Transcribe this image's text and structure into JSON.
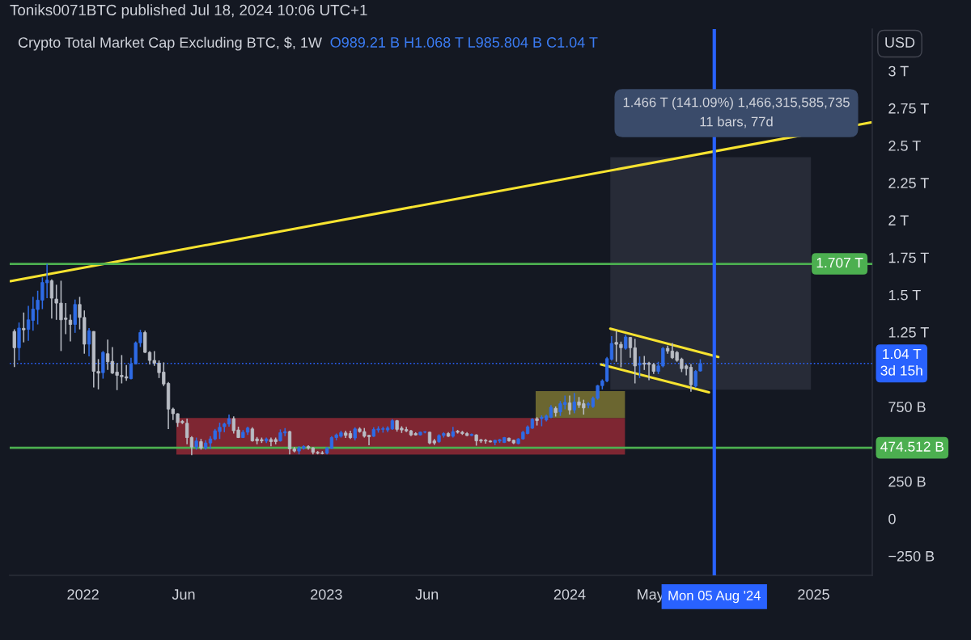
{
  "chart_data": {
    "type": "candlestick",
    "title": "Crypto Total Market Cap Excluding BTC, $, 1W",
    "subtitle": "O989.21 B H1.068 T L985.804 B C1.04 T",
    "annotations": [
      "Toniks0071BTC published Jul 18, 2024 10:06 UTC+1",
      "USD",
      "1.466 T (141.09%) 1,466,315,585,735\n11 bars, 77d"
    ],
    "xlim": [
      "2021-09-13",
      "2025-03-30"
    ],
    "xticks": [
      {
        "value": "2022-01-01",
        "label": "2022"
      },
      {
        "value": "2022-06-01",
        "label": "Jun"
      },
      {
        "value": "2023-01-01",
        "label": "2023"
      },
      {
        "value": "2023-06-01",
        "label": "Jun"
      },
      {
        "value": "2024-01-01",
        "label": "2024"
      },
      {
        "value": "2024-05-01",
        "label": "May"
      },
      {
        "value": "2025-01-01",
        "label": "2025"
      }
    ],
    "ylim": [
      -380000000000.0,
      3280000000000.0
    ],
    "yticks": [
      {
        "value": -250000000000.0,
        "label": "−250 B"
      },
      0,
      {
        "value": 250000000000.0,
        "label": "250 B"
      },
      {
        "value": 750000000000.0,
        "label": "750 B"
      },
      {
        "value": 1250000000000.0,
        "label": "1.25 T"
      },
      {
        "value": 1500000000000.0,
        "label": "1.5 T"
      },
      {
        "value": 1750000000000.0,
        "label": "1.75 T"
      },
      {
        "value": 2000000000000.0,
        "label": "2 T"
      },
      {
        "value": 2250000000000.0,
        "label": "2.25 T"
      },
      {
        "value": 2500000000000.0,
        "label": "2.5 T"
      },
      {
        "value": 2750000000000.0,
        "label": "2.75 T"
      },
      {
        "value": 3000000000000.0,
        "label": "3 T"
      }
    ],
    "ref_lines": [
      {
        "axis": "y",
        "value": 1707000000000.0,
        "label": "1.707 T",
        "color": "#4caf50"
      },
      {
        "axis": "y",
        "value": 474512000000.0,
        "label": "474.512 B",
        "color": "#4caf50"
      },
      {
        "axis": "y",
        "value": 1040000000000.0,
        "label": "1.04 T\n3d 15h",
        "color": "#2962ff",
        "line_style": "dotted"
      },
      {
        "axis": "x",
        "value": "2024-08-05",
        "label": "Mon 05 Aug '24",
        "color": "#2962ff"
      }
    ],
    "x": [
      "2021-09-20",
      "2021-09-27",
      "2021-10-04",
      "2021-10-11",
      "2021-10-18",
      "2021-10-25",
      "2021-11-01",
      "2021-11-08",
      "2021-11-15",
      "2021-11-22",
      "2021-11-29",
      "2021-12-06",
      "2021-12-13",
      "2021-12-20",
      "2021-12-27",
      "2022-01-03",
      "2022-01-10",
      "2022-01-17",
      "2022-01-24",
      "2022-01-31",
      "2022-02-07",
      "2022-02-14",
      "2022-02-21",
      "2022-02-28",
      "2022-03-07",
      "2022-03-14",
      "2022-03-21",
      "2022-03-28",
      "2022-04-04",
      "2022-04-11",
      "2022-04-18",
      "2022-04-25",
      "2022-05-02",
      "2022-05-09",
      "2022-05-16",
      "2022-05-23",
      "2022-05-30",
      "2022-06-06",
      "2022-06-13",
      "2022-06-20",
      "2022-06-27",
      "2022-07-04",
      "2022-07-11",
      "2022-07-18",
      "2022-07-25",
      "2022-08-01",
      "2022-08-08",
      "2022-08-15",
      "2022-08-22",
      "2022-08-29",
      "2022-09-05",
      "2022-09-12",
      "2022-09-19",
      "2022-09-26",
      "2022-10-03",
      "2022-10-10",
      "2022-10-17",
      "2022-10-24",
      "2022-10-31",
      "2022-11-07",
      "2022-11-14",
      "2022-11-21",
      "2022-11-28",
      "2022-12-05",
      "2022-12-12",
      "2022-12-19",
      "2022-12-26",
      "2023-01-02",
      "2023-01-09",
      "2023-01-16",
      "2023-01-23",
      "2023-01-30",
      "2023-02-06",
      "2023-02-13",
      "2023-02-20",
      "2023-02-27",
      "2023-03-06",
      "2023-03-13",
      "2023-03-20",
      "2023-03-27",
      "2023-04-03",
      "2023-04-10",
      "2023-04-17",
      "2023-04-24",
      "2023-05-01",
      "2023-05-08",
      "2023-05-15",
      "2023-05-22",
      "2023-05-29",
      "2023-06-05",
      "2023-06-12",
      "2023-06-19",
      "2023-06-26",
      "2023-07-03",
      "2023-07-10",
      "2023-07-17",
      "2023-07-24",
      "2023-07-31",
      "2023-08-07",
      "2023-08-14",
      "2023-08-21",
      "2023-08-28",
      "2023-09-04",
      "2023-09-11",
      "2023-09-18",
      "2023-09-25",
      "2023-10-02",
      "2023-10-09",
      "2023-10-16",
      "2023-10-23",
      "2023-10-30",
      "2023-11-06",
      "2023-11-13",
      "2023-11-20",
      "2023-11-27",
      "2023-12-04",
      "2023-12-11",
      "2023-12-18",
      "2023-12-25",
      "2024-01-01",
      "2024-01-08",
      "2024-01-15",
      "2024-01-22",
      "2024-01-29",
      "2024-02-05",
      "2024-02-12",
      "2024-02-19",
      "2024-02-26",
      "2024-03-04",
      "2024-03-11",
      "2024-03-18",
      "2024-03-25",
      "2024-04-01",
      "2024-04-08",
      "2024-04-15",
      "2024-04-22",
      "2024-04-29",
      "2024-05-06",
      "2024-05-13",
      "2024-05-20",
      "2024-05-27",
      "2024-06-03",
      "2024-06-10",
      "2024-06-17",
      "2024-06-24",
      "2024-07-01",
      "2024-07-08",
      "2024-07-15"
    ],
    "ohlc": [
      [
        1254000000000.0,
        1268000000000.0,
        1015000000000.0,
        1145000000000.0
      ],
      [
        1145000000000.0,
        1314000000000.0,
        1060000000000.0,
        1277000000000.0
      ],
      [
        1275000000000.0,
        1381000000000.0,
        1181000000000.0,
        1265000000000.0
      ],
      [
        1268000000000.0,
        1426000000000.0,
        1192000000000.0,
        1332000000000.0
      ],
      [
        1328000000000.0,
        1486000000000.0,
        1259000000000.0,
        1404000000000.0
      ],
      [
        1401000000000.0,
        1527000000000.0,
        1301000000000.0,
        1464000000000.0
      ],
      [
        1464000000000.0,
        1616000000000.0,
        1404000000000.0,
        1582000000000.0
      ],
      [
        1580000000000.0,
        1707000000000.0,
        1477000000000.0,
        1598000000000.0
      ],
      [
        1594000000000.0,
        1603000000000.0,
        1341000000000.0,
        1477000000000.0
      ],
      [
        1471000000000.0,
        1567000000000.0,
        1332000000000.0,
        1444000000000.0
      ],
      [
        1444000000000.0,
        1594000000000.0,
        1123000000000.0,
        1332000000000.0
      ],
      [
        1344000000000.0,
        1444000000000.0,
        1236000000000.0,
        1335000000000.0
      ],
      [
        1330000000000.0,
        1368000000000.0,
        1187000000000.0,
        1301000000000.0
      ],
      [
        1301000000000.0,
        1468000000000.0,
        1245000000000.0,
        1435000000000.0
      ],
      [
        1435000000000.0,
        1486000000000.0,
        1268000000000.0,
        1348000000000.0
      ],
      [
        1348000000000.0,
        1395000000000.0,
        1105000000000.0,
        1169000000000.0
      ],
      [
        1169000000000.0,
        1277000000000.0,
        1087000000000.0,
        1259000000000.0
      ],
      [
        1254000000000.0,
        1256000000000.0,
        879000000000.0,
        987000000000.0
      ],
      [
        986000000000.0,
        1069000000000.0,
        866000000000.0,
        975000000000.0
      ],
      [
        978000000000.0,
        1123000000000.0,
        938000000000.0,
        1114000000000.0
      ],
      [
        1105000000000.0,
        1199000000000.0,
        996000000000.0,
        1051000000000.0
      ],
      [
        1054000000000.0,
        1150000000000.0,
        969000000000.0,
        975000000000.0
      ],
      [
        982000000000.0,
        1042000000000.0,
        861000000000.0,
        960000000000.0
      ],
      [
        960000000000.0,
        1096000000000.0,
        906000000000.0,
        951000000000.0
      ],
      [
        951000000000.0,
        1029000000000.0,
        924000000000.0,
        942000000000.0
      ],
      [
        938000000000.0,
        1078000000000.0,
        933000000000.0,
        1036000000000.0
      ],
      [
        1036000000000.0,
        1187000000000.0,
        1033000000000.0,
        1178000000000.0
      ],
      [
        1178000000000.0,
        1265000000000.0,
        1150000000000.0,
        1247000000000.0
      ],
      [
        1247000000000.0,
        1259000000000.0,
        1110000000000.0,
        1114000000000.0
      ],
      [
        1114000000000.0,
        1123000000000.0,
        1033000000000.0,
        1060000000000.0
      ],
      [
        1060000000000.0,
        1123000000000.0,
        1024000000000.0,
        1042000000000.0
      ],
      [
        1042000000000.0,
        1060000000000.0,
        942000000000.0,
        978000000000.0
      ],
      [
        982000000000.0,
        1047000000000.0,
        888000000000.0,
        902000000000.0
      ],
      [
        906000000000.0,
        915000000000.0,
        600000000000.0,
        734000000000.0
      ],
      [
        734000000000.0,
        743000000000.0,
        661000000000.0,
        703000000000.0
      ],
      [
        703000000000.0,
        706000000000.0,
        615000000000.0,
        643000000000.0
      ],
      [
        652000000000.0,
        661000000000.0,
        634000000000.0,
        643000000000.0
      ],
      [
        639000000000.0,
        670000000000.0,
        498000000000.0,
        543000000000.0
      ],
      [
        543000000000.0,
        552000000000.0,
        425000000000.0,
        480000000000.0
      ],
      [
        480000000000.0,
        543000000000.0,
        462000000000.0,
        520000000000.0
      ],
      [
        516000000000.0,
        534000000000.0,
        462000000000.0,
        474000000000.0
      ],
      [
        474000000000.0,
        525000000000.0,
        462000000000.0,
        507000000000.0
      ],
      [
        507000000000.0,
        552000000000.0,
        467000000000.0,
        534000000000.0
      ],
      [
        534000000000.0,
        601000000000.0,
        525000000000.0,
        589000000000.0
      ],
      [
        583000000000.0,
        643000000000.0,
        534000000000.0,
        612000000000.0
      ],
      [
        616000000000.0,
        643000000000.0,
        579000000000.0,
        634000000000.0
      ],
      [
        634000000000.0,
        697000000000.0,
        616000000000.0,
        670000000000.0
      ],
      [
        670000000000.0,
        685000000000.0,
        570000000000.0,
        589000000000.0
      ],
      [
        594000000000.0,
        616000000000.0,
        540000000000.0,
        543000000000.0
      ],
      [
        543000000000.0,
        594000000000.0,
        540000000000.0,
        579000000000.0
      ],
      [
        579000000000.0,
        616000000000.0,
        561000000000.0,
        607000000000.0
      ],
      [
        601000000000.0,
        612000000000.0,
        516000000000.0,
        521000000000.0
      ],
      [
        534000000000.0,
        547000000000.0,
        498000000000.0,
        521000000000.0
      ],
      [
        529000000000.0,
        543000000000.0,
        507000000000.0,
        521000000000.0
      ],
      [
        520000000000.0,
        543000000000.0,
        507000000000.0,
        534000000000.0
      ],
      [
        530000000000.0,
        543000000000.0,
        485000000000.0,
        516000000000.0
      ],
      [
        530000000000.0,
        543000000000.0,
        498000000000.0,
        516000000000.0
      ],
      [
        521000000000.0,
        598000000000.0,
        516000000000.0,
        576000000000.0
      ],
      [
        574000000000.0,
        607000000000.0,
        552000000000.0,
        583000000000.0
      ],
      [
        583000000000.0,
        589000000000.0,
        431000000000.0,
        467000000000.0
      ],
      [
        467000000000.0,
        480000000000.0,
        444000000000.0,
        453000000000.0
      ],
      [
        453000000000.0,
        485000000000.0,
        431000000000.0,
        474000000000.0
      ],
      [
        471000000000.0,
        492000000000.0,
        462000000000.0,
        483000000000.0
      ],
      [
        483000000000.0,
        492000000000.0,
        462000000000.0,
        474000000000.0
      ],
      [
        474000000000.0,
        480000000000.0,
        431000000000.0,
        444000000000.0
      ],
      [
        444000000000.0,
        453000000000.0,
        431000000000.0,
        438000000000.0
      ],
      [
        440000000000.0,
        453000000000.0,
        431000000000.0,
        436000000000.0
      ],
      [
        438000000000.0,
        480000000000.0,
        431000000000.0,
        474000000000.0
      ],
      [
        471000000000.0,
        552000000000.0,
        467000000000.0,
        543000000000.0
      ],
      [
        543000000000.0,
        570000000000.0,
        525000000000.0,
        561000000000.0
      ],
      [
        552000000000.0,
        589000000000.0,
        543000000000.0,
        576000000000.0
      ],
      [
        574000000000.0,
        589000000000.0,
        540000000000.0,
        558000000000.0
      ],
      [
        570000000000.0,
        589000000000.0,
        534000000000.0,
        543000000000.0
      ],
      [
        540000000000.0,
        612000000000.0,
        525000000000.0,
        601000000000.0
      ],
      [
        601000000000.0,
        612000000000.0,
        576000000000.0,
        583000000000.0
      ],
      [
        583000000000.0,
        607000000000.0,
        543000000000.0,
        552000000000.0
      ],
      [
        558000000000.0,
        561000000000.0,
        492000000000.0,
        549000000000.0
      ],
      [
        552000000000.0,
        612000000000.0,
        547000000000.0,
        598000000000.0
      ],
      [
        594000000000.0,
        619000000000.0,
        576000000000.0,
        601000000000.0
      ],
      [
        598000000000.0,
        616000000000.0,
        576000000000.0,
        603000000000.0
      ],
      [
        594000000000.0,
        619000000000.0,
        579000000000.0,
        607000000000.0
      ],
      [
        601000000000.0,
        666000000000.0,
        594000000000.0,
        656000000000.0
      ],
      [
        656000000000.0,
        661000000000.0,
        583000000000.0,
        598000000000.0
      ],
      [
        606000000000.0,
        619000000000.0,
        574000000000.0,
        594000000000.0
      ],
      [
        597000000000.0,
        615000000000.0,
        579000000000.0,
        588000000000.0
      ],
      [
        588000000000.0,
        594000000000.0,
        552000000000.0,
        561000000000.0
      ],
      [
        570000000000.0,
        579000000000.0,
        557000000000.0,
        561000000000.0
      ],
      [
        561000000000.0,
        583000000000.0,
        557000000000.0,
        579000000000.0
      ],
      [
        579000000000.0,
        586000000000.0,
        572000000000.0,
        582000000000.0
      ],
      [
        579000000000.0,
        583000000000.0,
        498000000000.0,
        507000000000.0
      ],
      [
        521000000000.0,
        534000000000.0,
        494000000000.0,
        507000000000.0
      ],
      [
        516000000000.0,
        565000000000.0,
        507000000000.0,
        557000000000.0
      ],
      [
        557000000000.0,
        579000000000.0,
        543000000000.0,
        570000000000.0
      ],
      [
        570000000000.0,
        579000000000.0,
        547000000000.0,
        552000000000.0
      ],
      [
        552000000000.0,
        615000000000.0,
        543000000000.0,
        583000000000.0
      ],
      [
        586000000000.0,
        594000000000.0,
        570000000000.0,
        579000000000.0
      ],
      [
        579000000000.0,
        588000000000.0,
        561000000000.0,
        570000000000.0
      ],
      [
        570000000000.0,
        579000000000.0,
        552000000000.0,
        557000000000.0
      ],
      [
        557000000000.0,
        570000000000.0,
        552000000000.0,
        565000000000.0
      ],
      [
        561000000000.0,
        565000000000.0,
        489000000000.0,
        521000000000.0
      ],
      [
        528000000000.0,
        534000000000.0,
        507000000000.0,
        520000000000.0
      ],
      [
        525000000000.0,
        534000000000.0,
        503000000000.0,
        520000000000.0
      ],
      [
        520000000000.0,
        525000000000.0,
        510000000000.0,
        514000000000.0
      ],
      [
        510000000000.0,
        529000000000.0,
        492000000000.0,
        525000000000.0
      ],
      [
        520000000000.0,
        534000000000.0,
        507000000000.0,
        529000000000.0
      ],
      [
        510000000000.0,
        547000000000.0,
        507000000000.0,
        543000000000.0
      ],
      [
        539000000000.0,
        543000000000.0,
        516000000000.0,
        521000000000.0
      ],
      [
        525000000000.0,
        529000000000.0,
        500000000000.0,
        507000000000.0
      ],
      [
        503000000000.0,
        539000000000.0,
        498000000000.0,
        534000000000.0
      ],
      [
        534000000000.0,
        588000000000.0,
        529000000000.0,
        579000000000.0
      ],
      [
        570000000000.0,
        624000000000.0,
        565000000000.0,
        615000000000.0
      ],
      [
        606000000000.0,
        673000000000.0,
        601000000000.0,
        666000000000.0
      ],
      [
        670000000000.0,
        679000000000.0,
        624000000000.0,
        657000000000.0
      ],
      [
        670000000000.0,
        692000000000.0,
        619000000000.0,
        679000000000.0
      ],
      [
        661000000000.0,
        697000000000.0,
        652000000000.0,
        688000000000.0
      ],
      [
        679000000000.0,
        761000000000.0,
        673000000000.0,
        746000000000.0
      ],
      [
        739000000000.0,
        751000000000.0,
        684000000000.0,
        710000000000.0
      ],
      [
        715000000000.0,
        788000000000.0,
        688000000000.0,
        770000000000.0
      ],
      [
        764000000000.0,
        824000000000.0,
        733000000000.0,
        779000000000.0
      ],
      [
        775000000000.0,
        824000000000.0,
        697000000000.0,
        728000000000.0
      ],
      [
        728000000000.0,
        842000000000.0,
        706000000000.0,
        782000000000.0
      ],
      [
        782000000000.0,
        815000000000.0,
        742000000000.0,
        761000000000.0
      ],
      [
        770000000000.0,
        797000000000.0,
        697000000000.0,
        742000000000.0
      ],
      [
        761000000000.0,
        782000000000.0,
        739000000000.0,
        770000000000.0
      ],
      [
        751000000000.0,
        818000000000.0,
        742000000000.0,
        806000000000.0
      ],
      [
        806000000000.0,
        896000000000.0,
        797000000000.0,
        891000000000.0
      ],
      [
        891000000000.0,
        933000000000.0,
        866000000000.0,
        923000000000.0
      ],
      [
        923000000000.0,
        1083000000000.0,
        914000000000.0,
        1072000000000.0
      ],
      [
        1068000000000.0,
        1222000000000.0,
        1059000000000.0,
        1174000000000.0
      ],
      [
        1181000000000.0,
        1259000000000.0,
        1051000000000.0,
        1168000000000.0
      ],
      [
        1168000000000.0,
        1186000000000.0,
        1014000000000.0,
        1145000000000.0
      ],
      [
        1141000000000.0,
        1232000000000.0,
        1132000000000.0,
        1217000000000.0
      ],
      [
        1214000000000.0,
        1217000000000.0,
        1078000000000.0,
        1145000000000.0
      ],
      [
        1145000000000.0,
        1205000000000.0,
        906000000000.0,
        1023000000000.0
      ],
      [
        1029000000000.0,
        1087000000000.0,
        942000000000.0,
        1042000000000.0
      ],
      [
        1042000000000.0,
        1090000000000.0,
        996000000000.0,
        1035000000000.0
      ],
      [
        1042000000000.0,
        1051000000000.0,
        927000000000.0,
        1033000000000.0
      ],
      [
        1033000000000.0,
        1042000000000.0,
        969000000000.0,
        987000000000.0
      ],
      [
        987000000000.0,
        1051000000000.0,
        969000000000.0,
        1023000000000.0
      ],
      [
        1023000000000.0,
        1150000000000.0,
        1014000000000.0,
        1141000000000.0
      ],
      [
        1141000000000.0,
        1159000000000.0,
        1105000000000.0,
        1123000000000.0
      ],
      [
        1123000000000.0,
        1177000000000.0,
        1069000000000.0,
        1078000000000.0
      ],
      [
        1114000000000.0,
        1123000000000.0,
        1051000000000.0,
        1060000000000.0
      ],
      [
        1069000000000.0,
        1078000000000.0,
        982000000000.0,
        1005000000000.0
      ],
      [
        1023000000000.0,
        1033000000000.0,
        960000000000.0,
        1005000000000.0
      ],
      [
        1014000000000.0,
        1036000000000.0,
        851000000000.0,
        897000000000.0
      ],
      [
        888000000000.0,
        996000000000.0,
        878000000000.0,
        987000000000.0
      ],
      [
        989210000000.0,
        1068000000000.0,
        985804000000.0,
        1040000000000.0
      ]
    ],
    "colors": [
      "#b8bcc4",
      "#2e6be6",
      "#b8bcc4",
      "#2e6be6",
      "#2e6be6",
      "#2e6be6",
      "#2e6be6",
      "#2e6be6",
      "#b8bcc4",
      "#b8bcc4",
      "#b8bcc4",
      "#b8bcc4",
      "#b8bcc4",
      "#2e6be6",
      "#b8bcc4",
      "#b8bcc4",
      "#2e6be6",
      "#b8bcc4",
      "#b8bcc4",
      "#2e6be6",
      "#b8bcc4",
      "#b8bcc4",
      "#b8bcc4",
      "#b8bcc4",
      "#b8bcc4",
      "#2e6be6",
      "#2e6be6",
      "#2e6be6",
      "#b8bcc4",
      "#b8bcc4",
      "#b8bcc4",
      "#b8bcc4",
      "#b8bcc4",
      "#b8bcc4",
      "#b8bcc4",
      "#b8bcc4",
      "#b8bcc4",
      "#b8bcc4",
      "#b8bcc4",
      "#2e6be6",
      "#b8bcc4",
      "#2e6be6",
      "#2e6be6",
      "#2e6be6",
      "#2e6be6",
      "#2e6be6",
      "#2e6be6",
      "#b8bcc4",
      "#b8bcc4",
      "#2e6be6",
      "#2e6be6",
      "#b8bcc4",
      "#b8bcc4",
      "#b8bcc4",
      "#2e6be6",
      "#b8bcc4",
      "#b8bcc4",
      "#2e6be6",
      "#2e6be6",
      "#b8bcc4",
      "#b8bcc4",
      "#2e6be6",
      "#2e6be6",
      "#b8bcc4",
      "#b8bcc4",
      "#b8bcc4",
      "#b8bcc4",
      "#2e6be6",
      "#2e6be6",
      "#2e6be6",
      "#2e6be6",
      "#b8bcc4",
      "#b8bcc4",
      "#2e6be6",
      "#b8bcc4",
      "#b8bcc4",
      "#b8bcc4",
      "#2e6be6",
      "#2e6be6",
      "#2e6be6",
      "#2e6be6",
      "#2e6be6",
      "#b8bcc4",
      "#b8bcc4",
      "#b8bcc4",
      "#b8bcc4",
      "#b8bcc4",
      "#2e6be6",
      "#2e6be6",
      "#b8bcc4",
      "#b8bcc4",
      "#2e6be6",
      "#2e6be6",
      "#b8bcc4",
      "#2e6be6",
      "#b8bcc4",
      "#b8bcc4",
      "#b8bcc4",
      "#2e6be6",
      "#b8bcc4",
      "#b8bcc4",
      "#b8bcc4",
      "#b8bcc4",
      "#2e6be6",
      "#2e6be6",
      "#2e6be6",
      "#b8bcc4",
      "#b8bcc4",
      "#2e6be6",
      "#2e6be6",
      "#2e6be6",
      "#2e6be6",
      "#b8bcc4",
      "#2e6be6",
      "#2e6be6",
      "#2e6be6",
      "#b8bcc4",
      "#2e6be6",
      "#2e6be6",
      "#b8bcc4",
      "#2e6be6",
      "#b8bcc4",
      "#b8bcc4",
      "#2e6be6",
      "#2e6be6",
      "#2e6be6",
      "#2e6be6",
      "#2e6be6",
      "#2e6be6",
      "#b8bcc4",
      "#b8bcc4",
      "#2e6be6",
      "#b8bcc4",
      "#b8bcc4",
      "#2e6be6",
      "#b8bcc4",
      "#b8bcc4",
      "#b8bcc4",
      "#2e6be6",
      "#2e6be6",
      "#b8bcc4",
      "#b8bcc4",
      "#b8bcc4",
      "#b8bcc4",
      "#b8bcc4",
      "#b8bcc4",
      "#2e6be6",
      "#2e6be6"
    ],
    "series": [
      {
        "type": "line",
        "x": [
          "2022-05-21",
          "2024-03-24"
        ],
        "values": [
          null,
          null
        ],
        "lower": [
          429000000000.0,
          429000000000.0
        ],
        "upper": [
          674000000000.0,
          674000000000.0
        ],
        "color": "#7e2632"
      },
      {
        "type": "line",
        "x": [
          "2023-11-11",
          "2024-03-24"
        ],
        "values": [
          null,
          null
        ],
        "lower": [
          674000000000.0,
          674000000000.0
        ],
        "upper": [
          855000000000.0,
          855000000000.0
        ],
        "color": "#6b6630"
      },
      {
        "type": "line",
        "x": [
          "2024-03-02",
          "2024-12-28"
        ],
        "values": [
          null,
          null
        ],
        "lower": [
          864000000000.0,
          864000000000.0
        ],
        "upper": [
          2422000000000.0,
          2422000000000.0
        ],
        "color": "#272b37"
      },
      {
        "type": "line",
        "x": [
          "2021-09-14",
          "2025-03-28"
        ],
        "values": [
          1591000000000.0,
          2654000000000.0
        ],
        "color": "#f7e330"
      },
      {
        "type": "line",
        "x": [
          "2024-03-02",
          "2024-08-11"
        ],
        "values": [
          1273000000000.0,
          1083000000000.0
        ],
        "color": "#f7e330"
      },
      {
        "type": "line",
        "x": [
          "2024-02-17",
          "2024-07-28"
        ],
        "values": [
          1033000000000.0,
          846000000000.0
        ],
        "color": "#f7e330"
      }
    ]
  }
}
